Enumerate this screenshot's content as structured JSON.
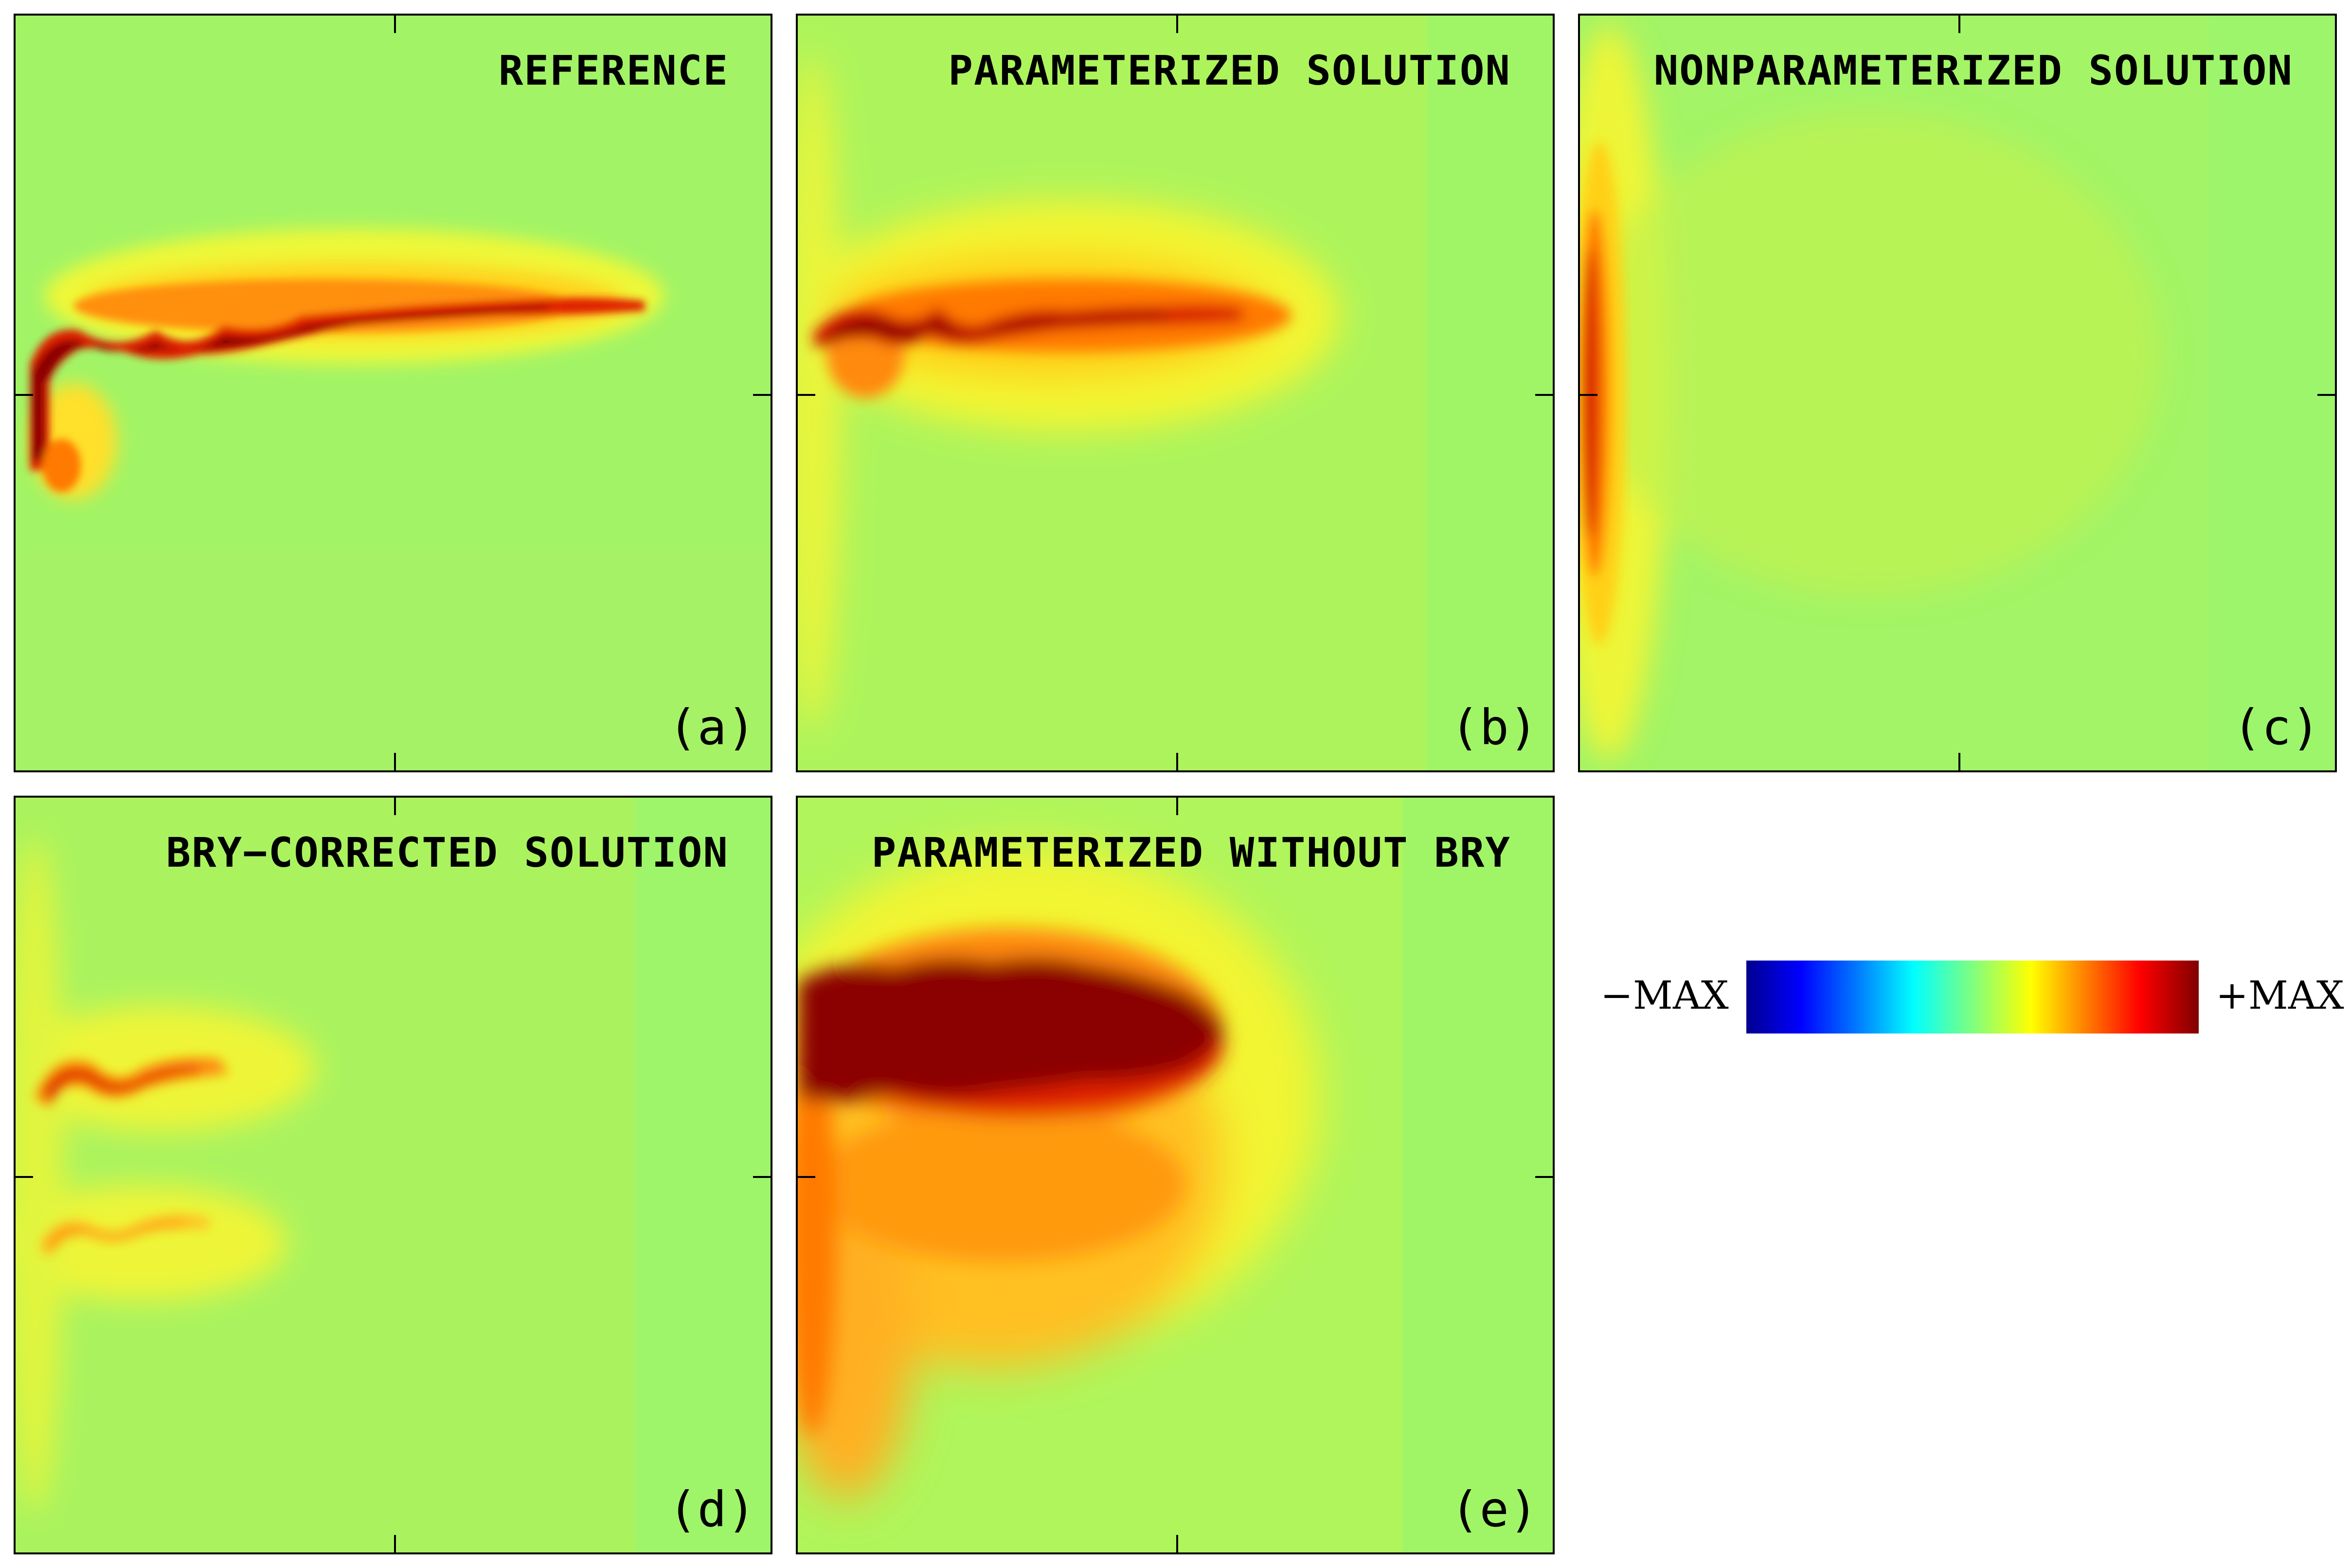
{
  "chart_data": {
    "type": "heatmap",
    "colormap": "jet",
    "colors": [
      "#00008f",
      "#0000ff",
      "#007fff",
      "#00ffff",
      "#7fff7f",
      "#ffff00",
      "#ff7f00",
      "#ff0000",
      "#800000"
    ],
    "background_color": "#98f56e",
    "colorbar": {
      "min_label": "−MAX",
      "max_label": "+MAX"
    },
    "panels": [
      {
        "label": "(a)",
        "title": "REFERENCE"
      },
      {
        "label": "(b)",
        "title": "PARAMETERIZED SOLUTION"
      },
      {
        "label": "(c)",
        "title": "NONPARAMETERIZED SOLUTION"
      },
      {
        "label": "(d)",
        "title": "BRY−CORRECTED SOLUTION"
      },
      {
        "label": "(e)",
        "title": "PARAMETERIZED WITHOUT BRY"
      }
    ]
  }
}
